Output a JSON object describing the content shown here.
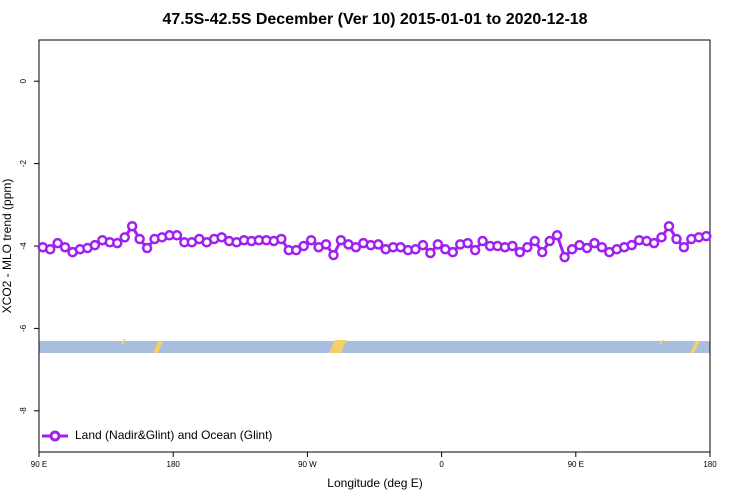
{
  "chart_data": {
    "type": "line",
    "title": "47.5S-42.5S December (Ver 10)   2015-01-01 to 2020-12-18",
    "xlabel": "Longitude (deg E)",
    "ylabel": "XCO2 - MLO trend (ppm)",
    "xlim": [
      90,
      540
    ],
    "xticks": [
      {
        "value": 90,
        "label": "90 E"
      },
      180,
      {
        "value": 270,
        "label": "90 W"
      },
      {
        "value": 360,
        "label": "0"
      },
      {
        "value": 450,
        "label": "90 E"
      },
      {
        "value": 540,
        "label": "180"
      }
    ],
    "ylim": [
      -9,
      1
    ],
    "yticks": [
      0,
      -2,
      -4,
      -6,
      -8
    ],
    "legend": "bottom-left",
    "x": [
      92.5,
      97.5,
      102.5,
      107.5,
      112.5,
      117.5,
      122.5,
      127.5,
      132.5,
      137.5,
      142.5,
      147.5,
      152.5,
      157.5,
      162.5,
      167.5,
      172.5,
      177.5,
      182.5,
      187.5,
      192.5,
      197.5,
      202.5,
      207.5,
      212.5,
      217.5,
      222.5,
      227.5,
      232.5,
      237.5,
      242.5,
      247.5,
      252.5,
      257.5,
      262.5,
      267.5,
      272.5,
      277.5,
      282.5,
      287.5,
      292.5,
      297.5,
      302.5,
      307.5,
      312.5,
      317.5,
      322.5,
      327.5,
      332.5,
      337.5,
      342.5,
      347.5,
      352.5,
      357.5,
      362.5,
      367.5,
      372.5,
      377.5,
      382.5,
      387.5,
      392.5,
      397.5,
      402.5,
      407.5,
      412.5,
      417.5,
      422.5,
      427.5,
      432.5,
      437.5,
      442.5,
      447.5,
      452.5,
      457.5,
      462.5,
      467.5,
      472.5,
      477.5,
      482.5,
      487.5,
      492.5,
      497.5,
      502.5,
      507.5,
      512.5,
      517.5,
      522.5,
      527.5,
      532.5,
      537.5
    ],
    "series": [
      {
        "name": "Land (Nadir&Glint) and Ocean (Glint)",
        "color": "#a020f0",
        "values": [
          -4.03,
          -4.08,
          -3.93,
          -4.03,
          -4.15,
          -4.08,
          -4.05,
          -3.98,
          -3.86,
          -3.91,
          -3.93,
          -3.79,
          -3.52,
          -3.83,
          -4.05,
          -3.83,
          -3.79,
          -3.74,
          -3.74,
          -3.91,
          -3.91,
          -3.83,
          -3.91,
          -3.83,
          -3.79,
          -3.88,
          -3.91,
          -3.86,
          -3.88,
          -3.86,
          -3.86,
          -3.88,
          -3.83,
          -4.1,
          -4.1,
          -4.0,
          -3.86,
          -4.03,
          -3.96,
          -4.22,
          -3.86,
          -3.96,
          -4.03,
          -3.93,
          -3.98,
          -3.96,
          -4.08,
          -4.03,
          -4.03,
          -4.1,
          -4.08,
          -3.98,
          -4.17,
          -3.96,
          -4.08,
          -4.15,
          -3.96,
          -3.93,
          -4.1,
          -3.88,
          -4.0,
          -4.0,
          -4.03,
          -4.0,
          -4.15,
          -4.03,
          -3.88,
          -4.15,
          -3.88,
          -3.74,
          -4.27,
          -4.08,
          -3.98,
          -4.05,
          -3.93,
          -4.03,
          -4.15,
          -4.08,
          -4.03,
          -3.98,
          -3.86,
          -3.88,
          -3.93,
          -3.79,
          -3.52,
          -3.83,
          -4.03,
          -3.83,
          -3.79,
          -3.76
        ]
      }
    ]
  }
}
